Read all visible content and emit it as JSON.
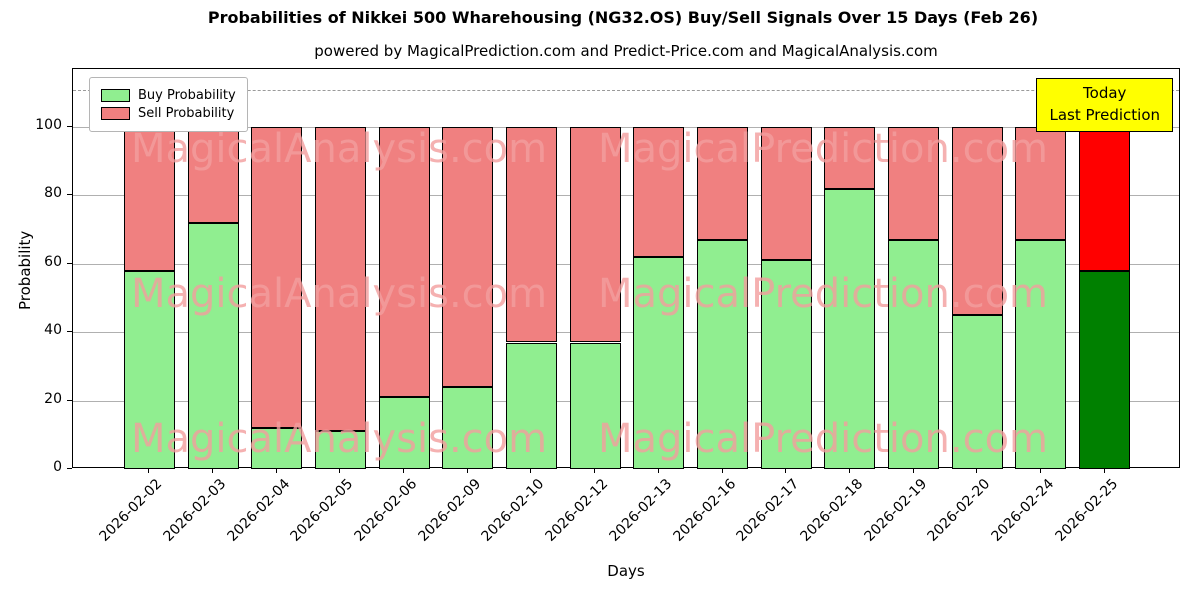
{
  "title": "Probabilities of Nikkei 500 Wharehousing (NG32.OS) Buy/Sell Signals Over 15 Days (Feb 26)",
  "subtitle": "powered by MagicalPrediction.com and Predict-Price.com and MagicalAnalysis.com",
  "ylabel": "Probability",
  "xlabel": "Days",
  "legend": {
    "buy_label": "Buy Probability",
    "sell_label": "Sell Probability"
  },
  "annotation": {
    "line1": "Today",
    "line2": "Last Prediction"
  },
  "watermarks": {
    "left_text": "MagicalAnalysis.com",
    "right_text": "MagicalPrediction.com"
  },
  "colors": {
    "buy": "#90EE90",
    "sell": "#F08080",
    "today_buy": "#008000",
    "today_sell": "#FF0000",
    "grid": "#b0b0b0",
    "annotation_bg": "#FFFF00",
    "watermark": "rgba(242,158,158,0.8)"
  },
  "chart_data": {
    "type": "bar",
    "stacked": true,
    "title": "Probabilities of Nikkei 500 Wharehousing (NG32.OS) Buy/Sell Signals Over 15 Days (Feb 26)",
    "xlabel": "Days",
    "ylabel": "Probability",
    "legend_position": "upper left",
    "grid": true,
    "categories": [
      "2026-02-02",
      "2026-02-03",
      "2026-02-04",
      "2026-02-05",
      "2026-02-06",
      "2026-02-09",
      "2026-02-10",
      "2026-02-12",
      "2026-02-13",
      "2026-02-16",
      "2026-02-17",
      "2026-02-18",
      "2026-02-19",
      "2026-02-20",
      "2026-02-24",
      "2026-02-25"
    ],
    "series": [
      {
        "name": "Buy Probability",
        "color": "#90EE90",
        "values": [
          58,
          72,
          12,
          11,
          21,
          24,
          37,
          37,
          62,
          67,
          61,
          82,
          67,
          45,
          67,
          58
        ]
      },
      {
        "name": "Sell Probability",
        "color": "#F08080",
        "values": [
          42,
          28,
          88,
          89,
          79,
          76,
          63,
          63,
          38,
          33,
          39,
          18,
          33,
          55,
          33,
          42
        ]
      }
    ],
    "today_colors": {
      "buy": "#008000",
      "sell": "#FF0000"
    },
    "ylim": [
      0,
      117
    ],
    "yticks": [
      0,
      20,
      40,
      60,
      80,
      100
    ],
    "dashed_line_y": 111
  }
}
